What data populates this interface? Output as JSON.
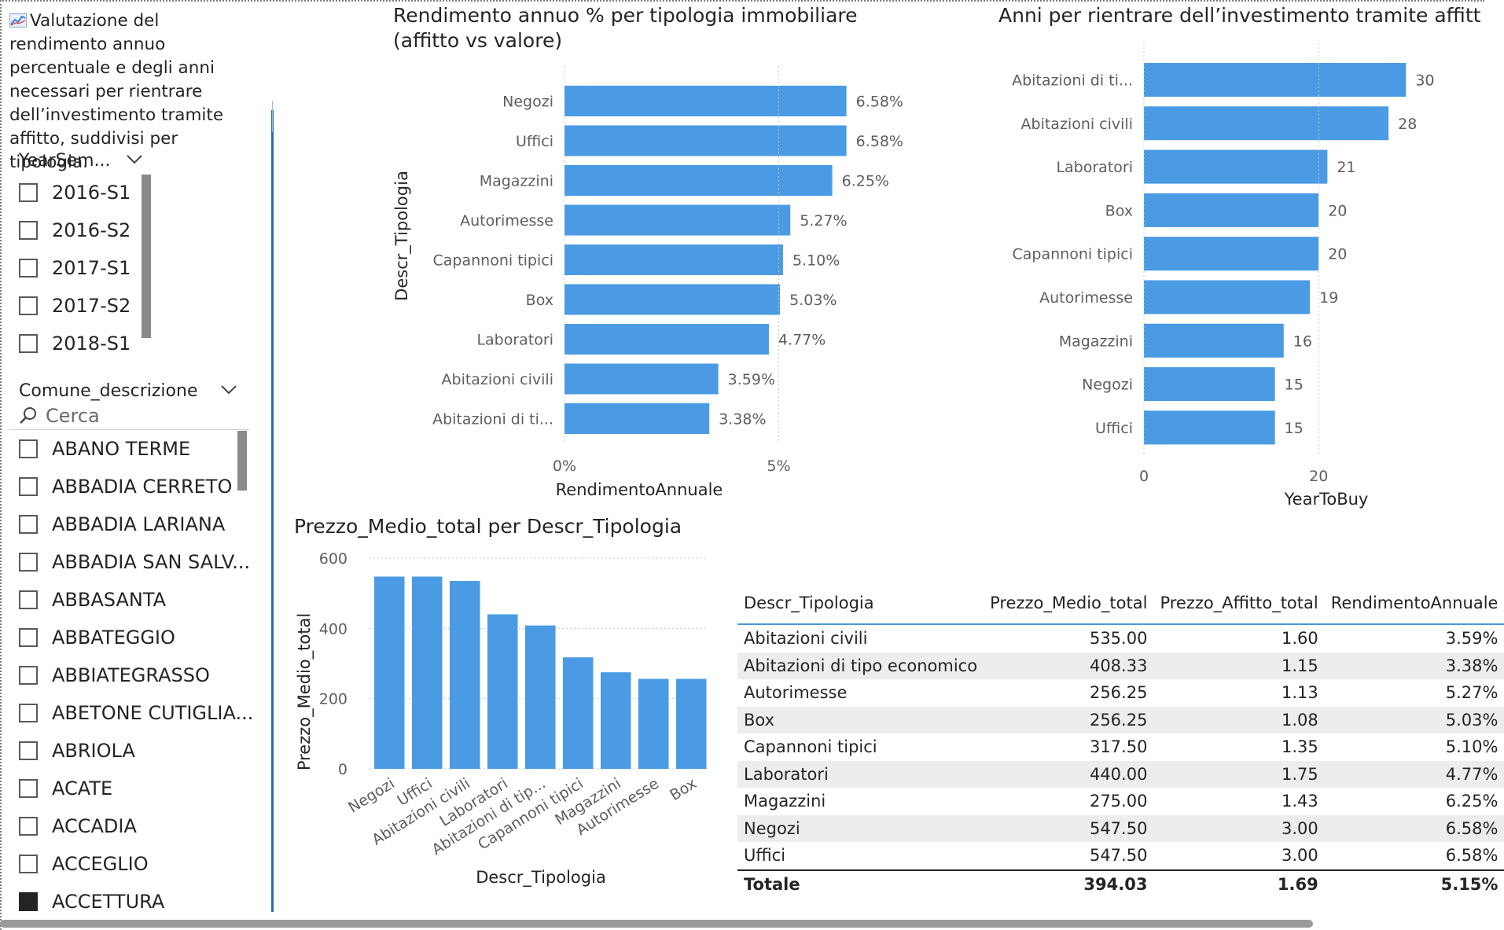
{
  "description": "Valutazione del rendimento annuo percentuale e degli anni necessari per rientrare dell’investimento tramite affitto, suddivisi per tipologia.",
  "description_icon": "line-chart-icon",
  "slicer_year": {
    "title": "YearSem...",
    "items": [
      "2016-S1",
      "2016-S2",
      "2017-S1",
      "2017-S2",
      "2018-S1"
    ]
  },
  "slicer_comune": {
    "title": "Comune_descrizione",
    "search_placeholder": "Cerca",
    "items": [
      "ABANO TERME",
      "ABBADIA CERRETO",
      "ABBADIA LARIANA",
      "ABBADIA SAN SALV...",
      "ABBASANTA",
      "ABBATEGGIO",
      "ABBIATEGRASSO",
      "ABETONE CUTIGLIA...",
      "ABRIOLA",
      "ACATE",
      "ACCADIA",
      "ACCEGLIO",
      "ACCETTURA"
    ]
  },
  "colors": {
    "bar": "#4a9be3",
    "accent": "#2b6ea8",
    "header_line": "#4d98d4"
  },
  "chart_data": [
    {
      "type": "bar",
      "orientation": "horizontal",
      "title": "Rendimento annuo % per tipologia immobiliare (affitto vs valore)",
      "title_line1": "Rendimento annuo % per tipologia immobiliare",
      "title_line2": "(affitto vs valore)",
      "xlabel": "RendimentoAnnuale",
      "ylabel": "Descr_Tipologia",
      "categories": [
        "Negozi",
        "Uffici",
        "Magazzini",
        "Autorimesse",
        "Capannoni tipici",
        "Box",
        "Laboratori",
        "Abitazioni civili",
        "Abitazioni di ti..."
      ],
      "values": [
        6.58,
        6.58,
        6.25,
        5.27,
        5.1,
        5.03,
        4.77,
        3.59,
        3.38
      ],
      "labels": [
        "6.58%",
        "6.58%",
        "6.25%",
        "5.27%",
        "5.10%",
        "5.03%",
        "4.77%",
        "3.59%",
        "3.38%"
      ],
      "xticks": [
        0,
        5
      ],
      "xtick_labels": [
        "0%",
        "5%"
      ],
      "xlim": [
        0,
        8
      ]
    },
    {
      "type": "bar",
      "orientation": "horizontal",
      "title": "Anni per rientrare dell'investimento tramite affitto",
      "title_visible": "Anni per rientrare dell’investimento tramite affitt",
      "xlabel": "YearToBuy",
      "categories": [
        "Abitazioni di ti...",
        "Abitazioni civili",
        "Laboratori",
        "Box",
        "Capannoni tipici",
        "Autorimesse",
        "Magazzini",
        "Negozi",
        "Uffici"
      ],
      "values": [
        30,
        28,
        21,
        20,
        20,
        19,
        16,
        15,
        15
      ],
      "labels": [
        "30",
        "28",
        "21",
        "20",
        "20",
        "19",
        "16",
        "15",
        "15"
      ],
      "xticks": [
        0,
        20
      ],
      "xtick_labels": [
        "0",
        "20"
      ],
      "xlim": [
        0,
        36
      ]
    },
    {
      "type": "bar",
      "orientation": "vertical",
      "title": "Prezzo_Medio_total per Descr_Tipologia",
      "xlabel": "Descr_Tipologia",
      "ylabel": "Prezzo_Medio_total",
      "categories": [
        "Negozi",
        "Uffici",
        "Abitazioni civili",
        "Laboratori",
        "Abitazioni di tip...",
        "Capannoni tipici",
        "Magazzini",
        "Autorimesse",
        "Box"
      ],
      "values": [
        547.5,
        547.5,
        535.0,
        440.0,
        408.33,
        317.5,
        275.0,
        256.25,
        256.25
      ],
      "yticks": [
        0,
        200,
        400,
        600
      ],
      "ytick_labels": [
        "0",
        "200",
        "400",
        "600"
      ],
      "ylim": [
        0,
        600
      ]
    },
    {
      "type": "table",
      "columns": [
        "Descr_Tipologia",
        "Prezzo_Medio_total",
        "Prezzo_Affitto_total",
        "RendimentoAnnuale"
      ],
      "rows": [
        [
          "Abitazioni civili",
          "535.00",
          "1.60",
          "3.59%"
        ],
        [
          "Abitazioni di tipo economico",
          "408.33",
          "1.15",
          "3.38%"
        ],
        [
          "Autorimesse",
          "256.25",
          "1.13",
          "5.27%"
        ],
        [
          "Box",
          "256.25",
          "1.08",
          "5.03%"
        ],
        [
          "Capannoni tipici",
          "317.50",
          "1.35",
          "5.10%"
        ],
        [
          "Laboratori",
          "440.00",
          "1.75",
          "4.77%"
        ],
        [
          "Magazzini",
          "275.00",
          "1.43",
          "6.25%"
        ],
        [
          "Negozi",
          "547.50",
          "3.00",
          "6.58%"
        ],
        [
          "Uffici",
          "547.50",
          "3.00",
          "6.58%"
        ]
      ],
      "total": [
        "Totale",
        "394.03",
        "1.69",
        "5.15%"
      ]
    }
  ]
}
